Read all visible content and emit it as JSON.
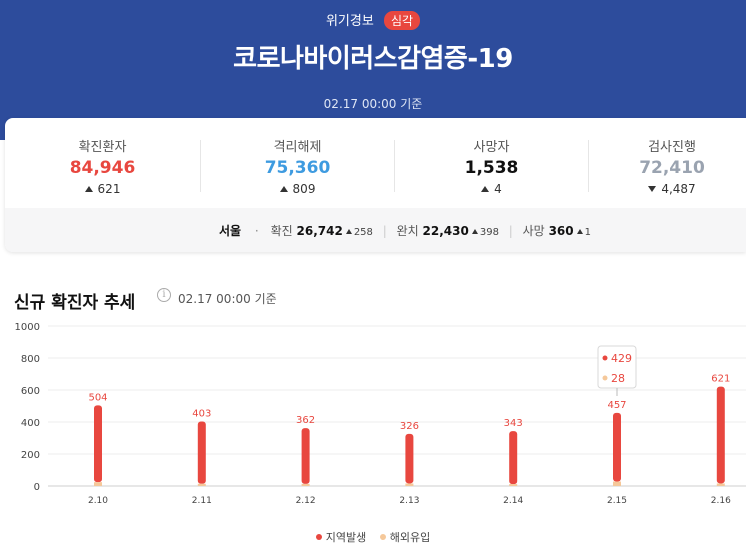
{
  "header": {
    "alert_label": "위기경보",
    "alert_level": "심각",
    "title": "코로나바이러스감염증-19",
    "updated": "02.17 00:00 기준"
  },
  "stats": [
    {
      "label": "확진환자",
      "value": "84,946",
      "delta": "621",
      "direction": "up",
      "color": "#e8473f"
    },
    {
      "label": "격리해제",
      "value": "75,360",
      "delta": "809",
      "direction": "up",
      "color": "#3e9be0"
    },
    {
      "label": "사망자",
      "value": "1,538",
      "delta": "4",
      "direction": "up",
      "color": "#111111"
    },
    {
      "label": "검사진행",
      "value": "72,410",
      "delta": "4,487",
      "direction": "down",
      "color": "#9aa3b0"
    }
  ],
  "region": {
    "name": "서울",
    "confirmed_label": "확진",
    "confirmed": "26,742",
    "confirmed_delta": "258",
    "recovered_label": "완치",
    "recovered": "22,430",
    "recovered_delta": "398",
    "deaths_label": "사망",
    "deaths": "360",
    "deaths_delta": "1"
  },
  "trend": {
    "title": "신규 확진자 추세",
    "info_icon": "info-icon",
    "updated": "02.17 00:00 기준"
  },
  "chart_data": {
    "type": "bar",
    "categories": [
      "2.10",
      "2.11",
      "2.12",
      "2.13",
      "2.14",
      "2.15",
      "2.16"
    ],
    "series": [
      {
        "name": "지역발생",
        "values": [
          480,
          389,
          349,
          310,
          331,
          429,
          605
        ],
        "color": "#e8473f"
      },
      {
        "name": "해외유입",
        "values": [
          24,
          14,
          13,
          16,
          12,
          28,
          16
        ],
        "color": "#f5c89a"
      }
    ],
    "totals": [
      504,
      403,
      362,
      326,
      343,
      457,
      621
    ],
    "yticks": [
      0,
      200,
      400,
      600,
      800,
      1000
    ],
    "ylim": [
      0,
      1000
    ],
    "grid": true,
    "legend": "bottom",
    "tooltip": {
      "category": "2.15",
      "local": "429",
      "overseas": "28"
    }
  }
}
